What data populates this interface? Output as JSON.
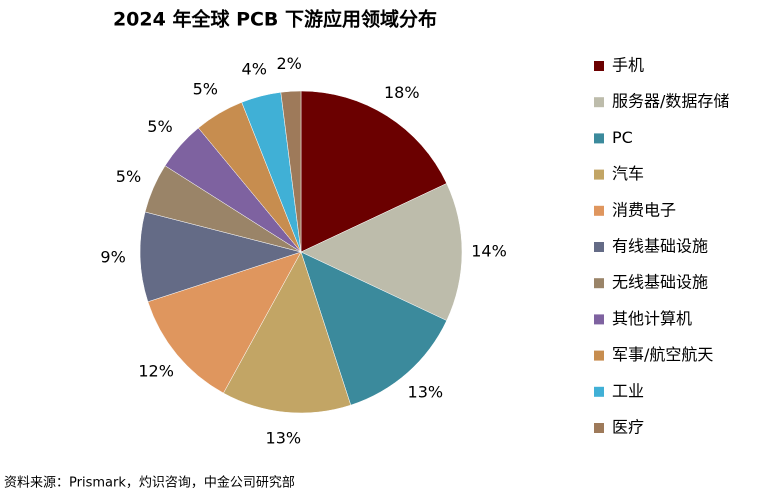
{
  "chart_data": {
    "type": "pie",
    "title": "2024 年全球 PCB 下游应用领域分布",
    "categories": [
      "手机",
      "服务器/数据存储",
      "PC",
      "汽车",
      "消费电子",
      "有线基础设施",
      "无线基础设施",
      "其他计算机",
      "军事/航空航天",
      "工业",
      "医疗"
    ],
    "values": [
      18,
      14,
      13,
      13,
      12,
      9,
      5,
      5,
      5,
      4,
      2
    ],
    "value_labels": [
      "18%",
      "14%",
      "13%",
      "13%",
      "12%",
      "9%",
      "5%",
      "5%",
      "5%",
      "4%",
      "2%"
    ],
    "colors": [
      "#6b0000",
      "#bdbcab",
      "#3b8a9c",
      "#c2a565",
      "#df965e",
      "#646b86",
      "#9a8468",
      "#7e62a0",
      "#c78d4f",
      "#40b0d6",
      "#9e7a5a"
    ],
    "source": "资料来源：Prismark，灼识咨询，中金公司研究部"
  }
}
